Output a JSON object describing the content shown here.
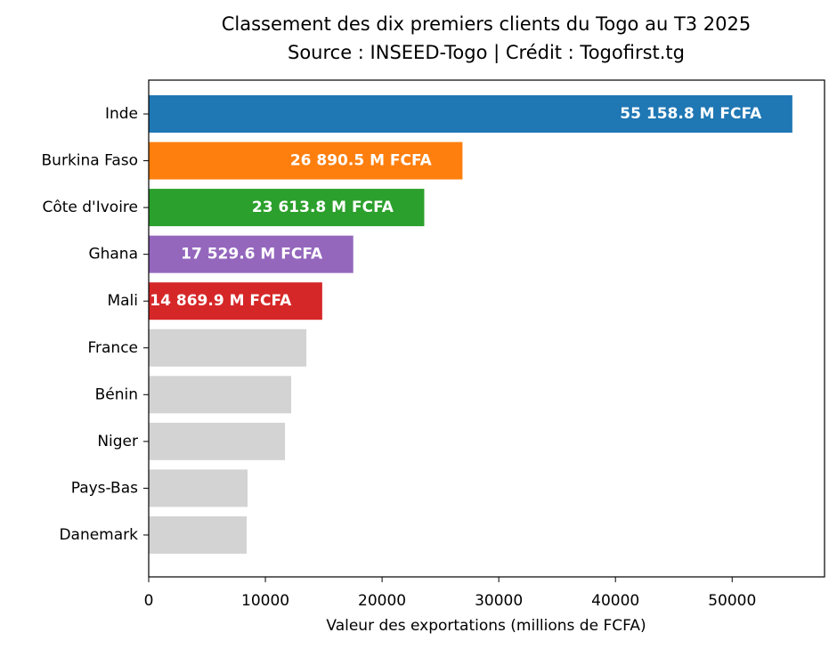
{
  "chart_data": {
    "type": "barh",
    "title": "Classement des dix premiers clients du Togo au T3 2025",
    "subtitle": "Source : INSEED-Togo | Crédit : Togofirst.tg",
    "x_label": "Valeur des exportations (millions de FCFA)",
    "categories": [
      "Inde",
      "Burkina Faso",
      "Côte d'Ivoire",
      "Ghana",
      "Mali",
      "France",
      "Bénin",
      "Niger",
      "Pays-Bas",
      "Danemark"
    ],
    "values": [
      55158.8,
      26890.5,
      23613.8,
      17529.6,
      14869.9,
      13510,
      12210,
      11680,
      8470,
      8400
    ],
    "value_labels": [
      "55 158.8 M FCFA",
      "26 890.5 M FCFA",
      "23 613.8 M FCFA",
      "17 529.6 M FCFA",
      "14 869.9 M FCFA",
      null,
      null,
      null,
      null,
      null
    ],
    "colors": [
      "#1f77b4",
      "#ff7f0e",
      "#2ca02c",
      "#9467bd",
      "#d62728",
      "#d3d3d3",
      "#d3d3d3",
      "#d3d3d3",
      "#d3d3d3",
      "#d3d3d3"
    ],
    "xlim": [
      0,
      57916.7
    ],
    "xticks": [
      0,
      10000,
      20000,
      30000,
      40000,
      50000
    ]
  }
}
